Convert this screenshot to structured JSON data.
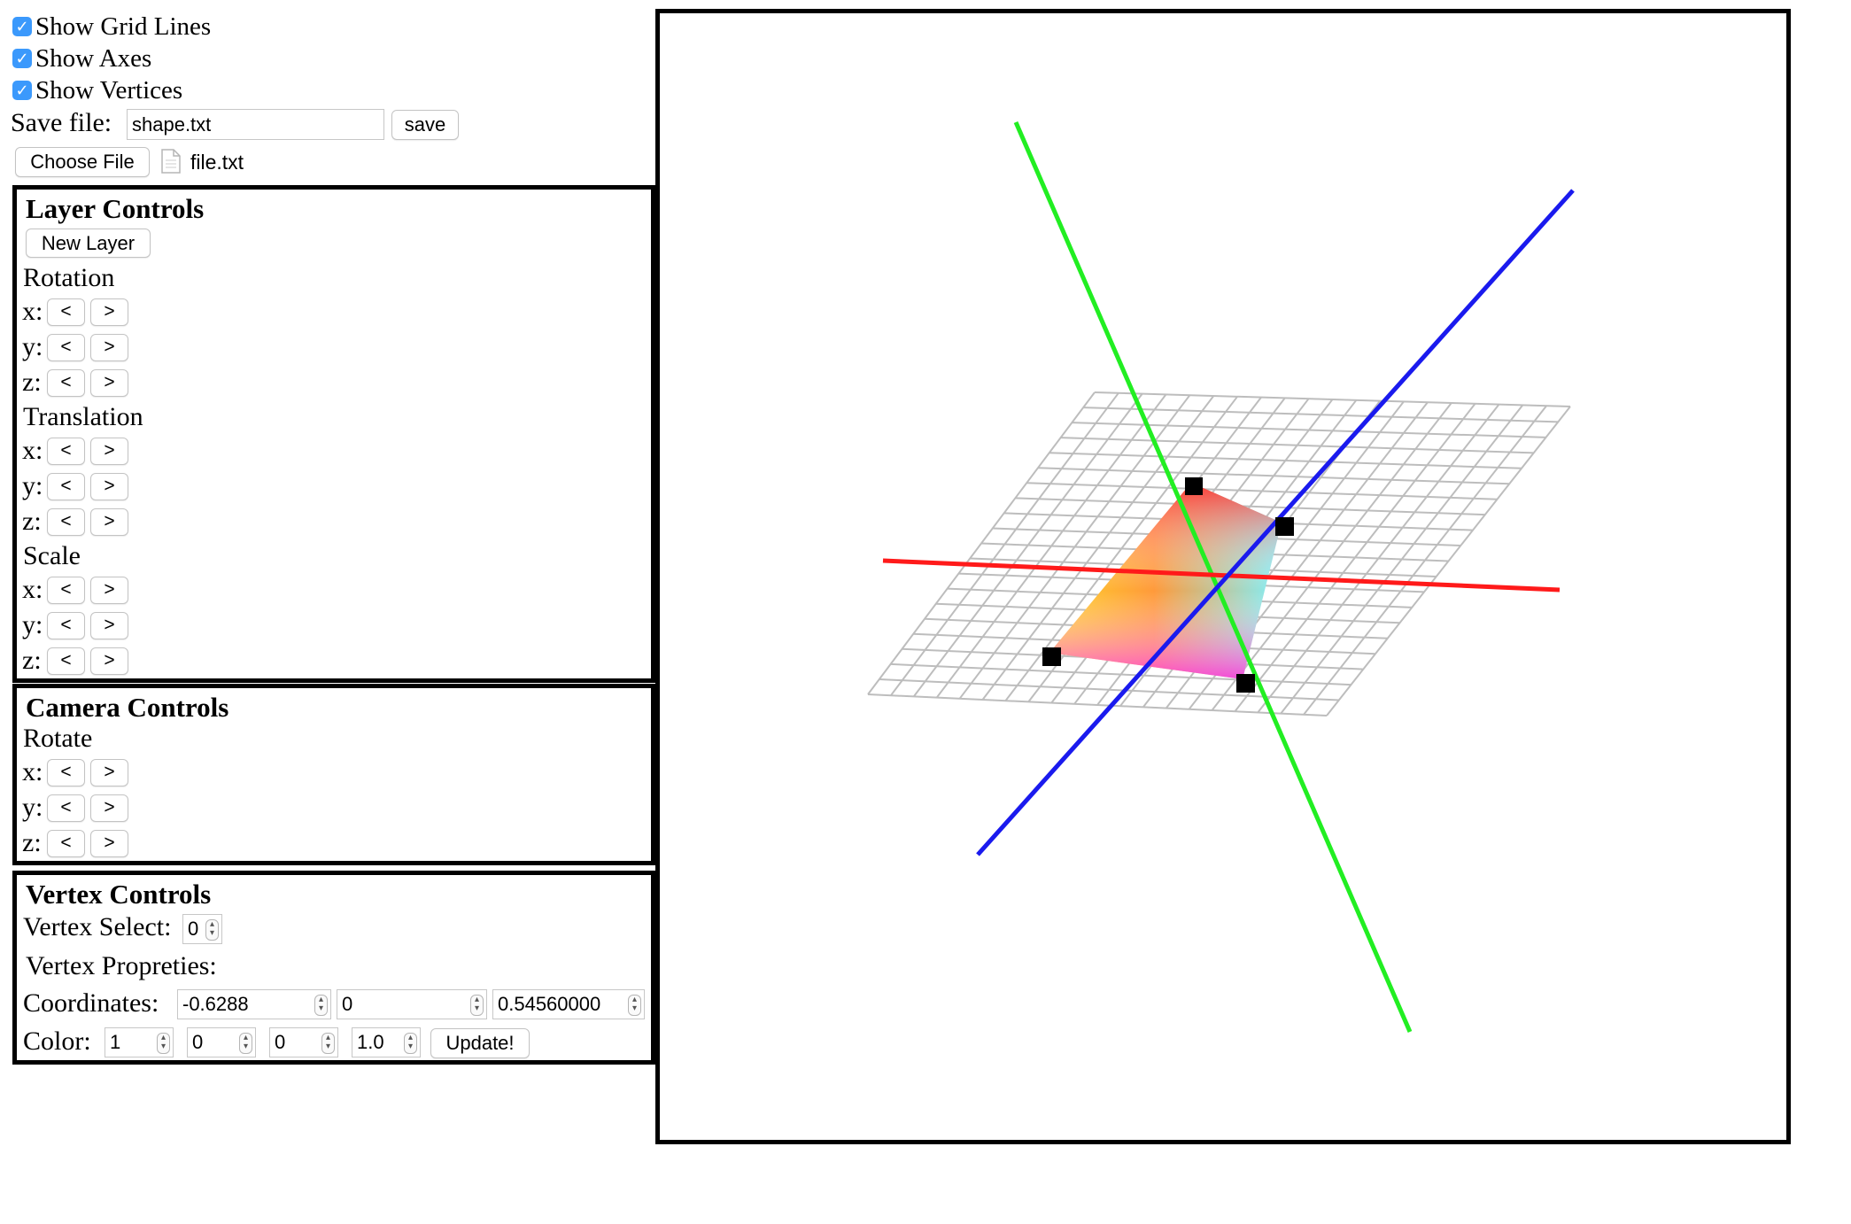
{
  "options": {
    "grid_lines": {
      "label": "Show Grid Lines",
      "checked": true
    },
    "axes": {
      "label": "Show Axes",
      "checked": true
    },
    "vertices": {
      "label": "Show Vertices",
      "checked": true
    }
  },
  "save": {
    "label": "Save file:",
    "filename": "shape.txt",
    "button": "save"
  },
  "file": {
    "choose_button": "Choose File",
    "chosen_name": "file.txt"
  },
  "layer_controls": {
    "title": "Layer Controls",
    "new_layer_button": "New Layer",
    "rotation_label": "Rotation",
    "translation_label": "Translation",
    "scale_label": "Scale"
  },
  "camera_controls": {
    "title": "Camera Controls",
    "rotate_label": "Rotate"
  },
  "axis_labels": {
    "x": "x:",
    "y": "y:",
    "z": "z:"
  },
  "step_buttons": {
    "decrease": "<",
    "increase": ">"
  },
  "vertex_controls": {
    "title": "Vertex Controls",
    "select_label": "Vertex Select:",
    "select_value": "0",
    "properties_label": "Vertex Propreties:",
    "coordinates_label": "Coordinates:",
    "coordinates": [
      "-0.6288",
      "0",
      "0.54560000"
    ],
    "color_label": "Color:",
    "color": [
      "1",
      "0",
      "0",
      "1.0"
    ],
    "update_button": "Update!"
  },
  "scene_colors": {
    "x_axis": "#ff1a1a",
    "y_axis": "#22ee22",
    "z_axis": "#1a1aee",
    "grid": "#bdbdbd",
    "vertex_marker": "#000000"
  }
}
